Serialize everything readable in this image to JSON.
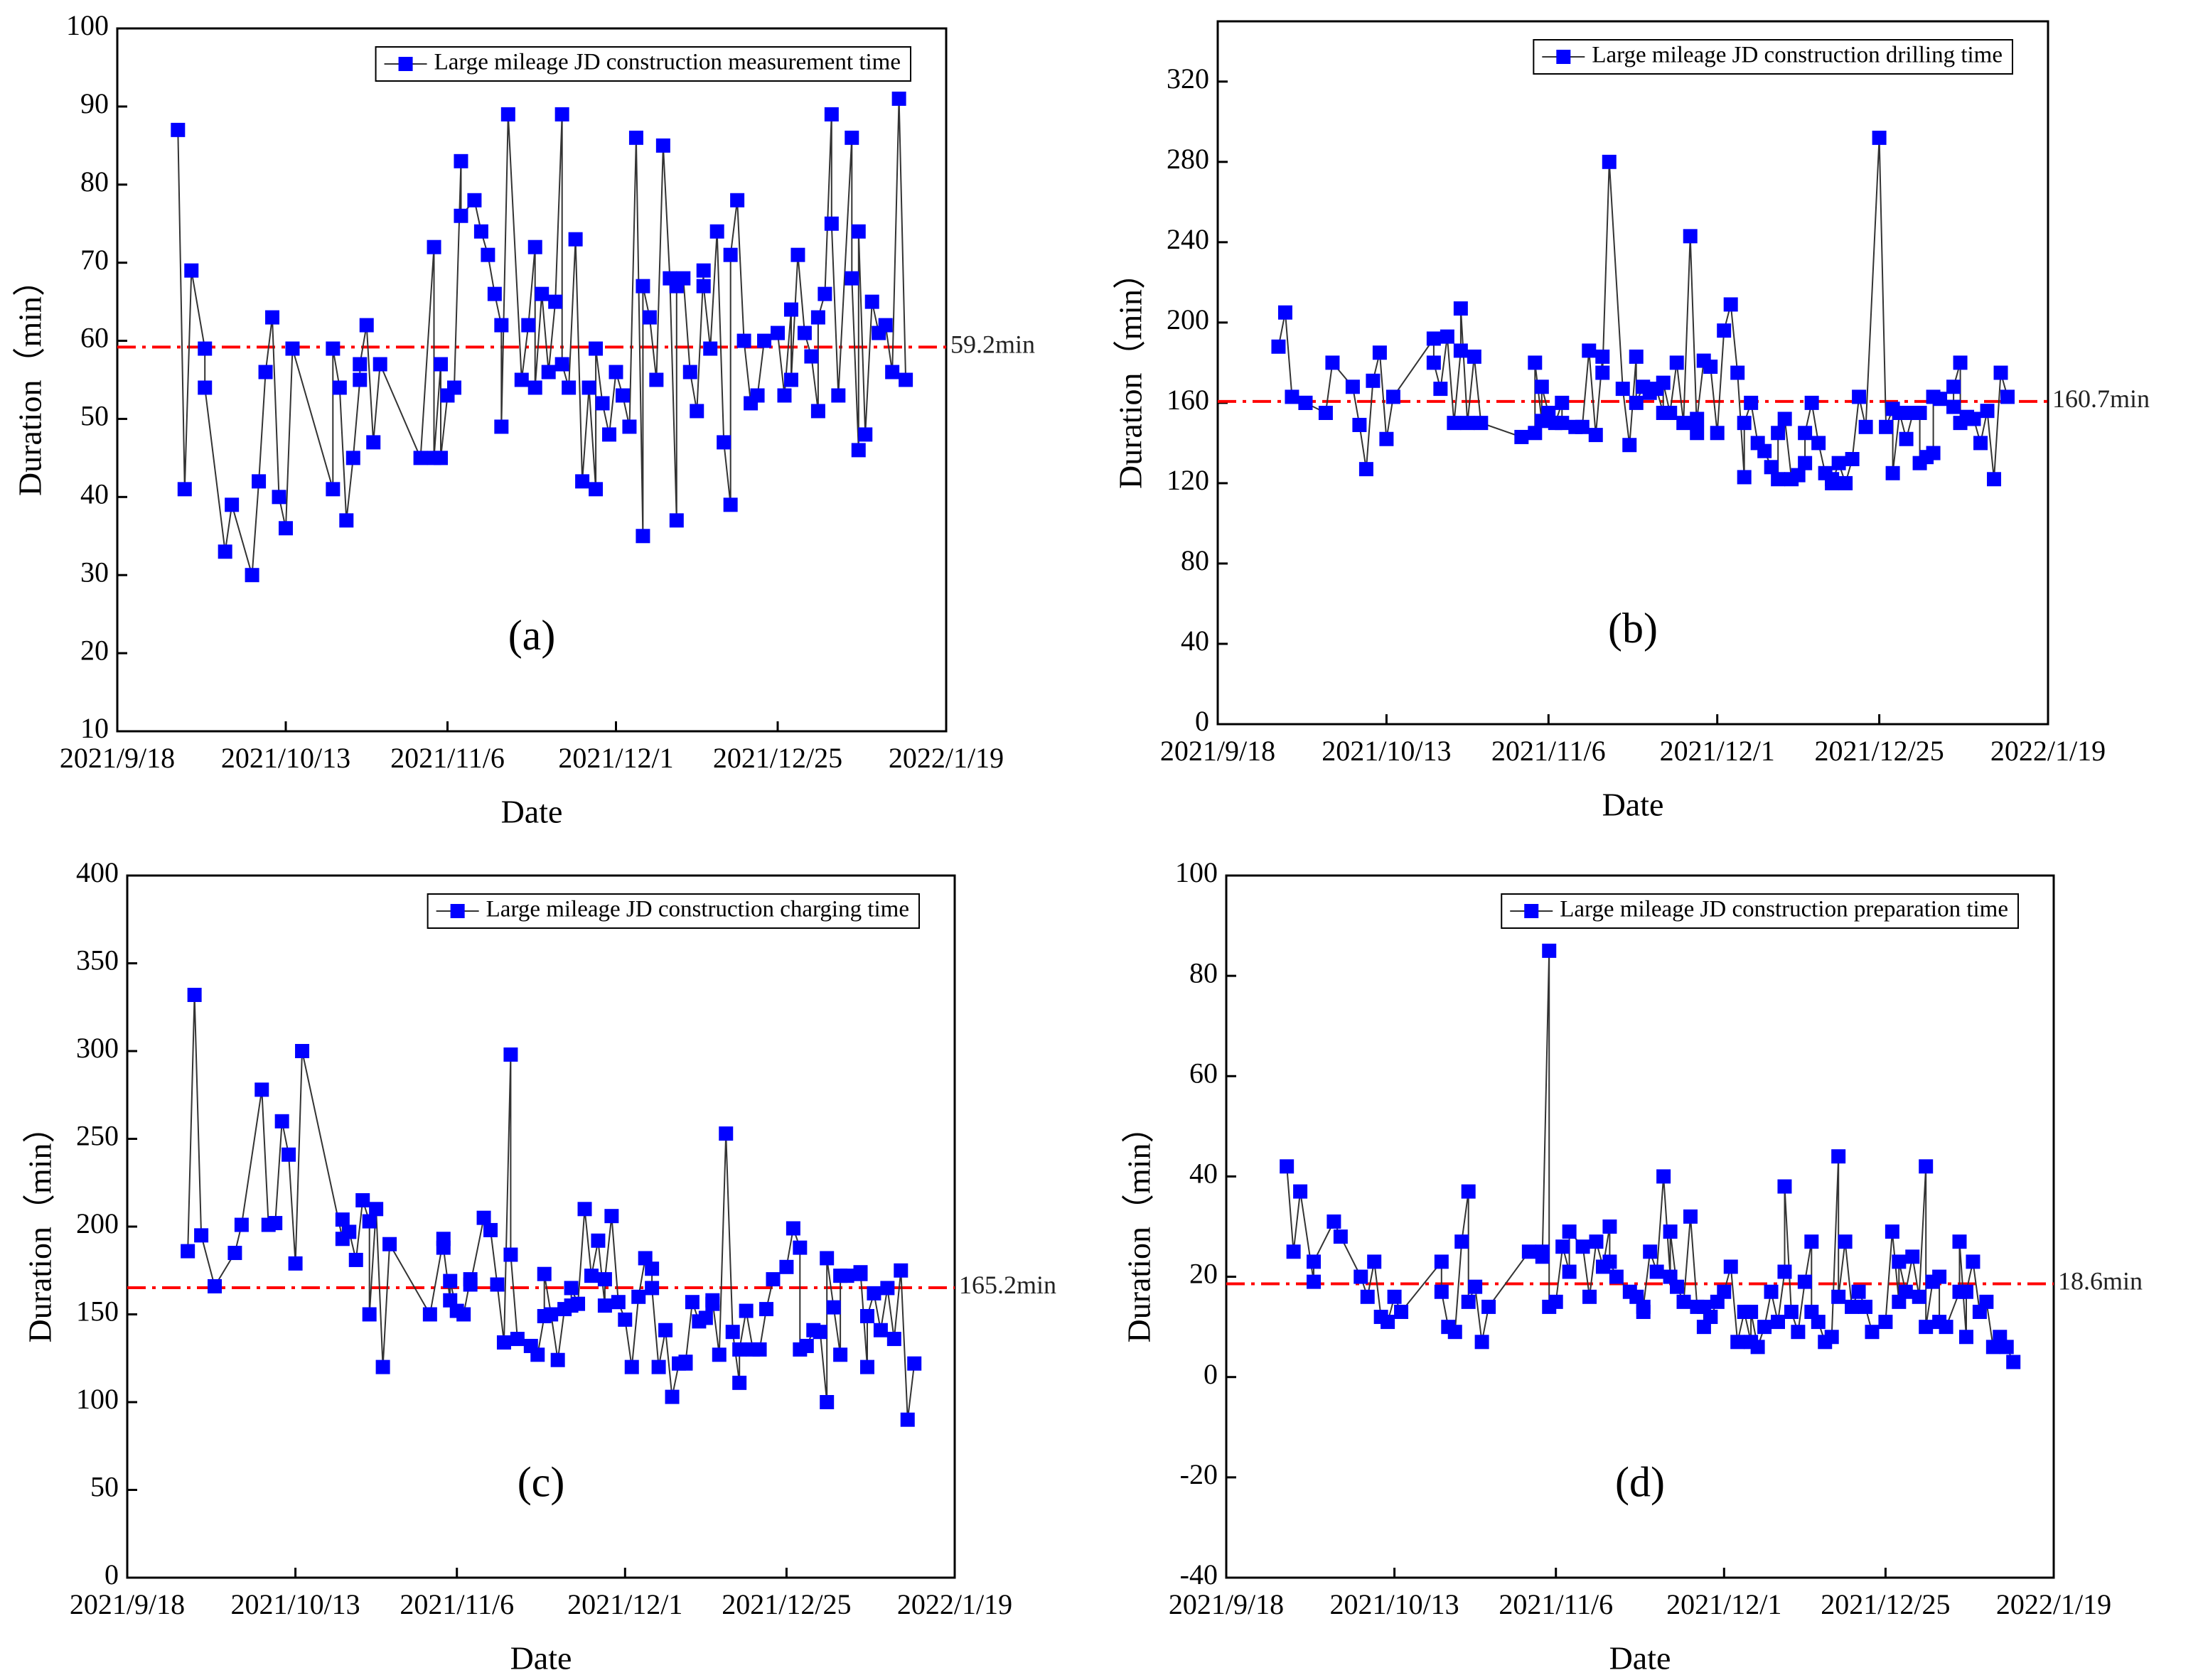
{
  "chart_data": [
    {
      "type": "line",
      "panel_label": "(a)",
      "x_label": "Date",
      "y_label": "Duration（min）",
      "x": [
        "2021/9/27",
        "2021/9/28",
        "2021/9/29",
        "2021/10/1",
        "2021/10/1",
        "2021/10/4",
        "2021/10/5",
        "2021/10/8",
        "2021/10/9",
        "2021/10/10",
        "2021/10/11",
        "2021/10/12",
        "2021/10/13",
        "2021/10/14",
        "2021/10/20",
        "2021/10/20",
        "2021/10/21",
        "2021/10/22",
        "2021/10/23",
        "2021/10/24",
        "2021/10/24",
        "2021/10/25",
        "2021/10/26",
        "2021/10/27",
        "2021/11/2",
        "2021/11/4",
        "2021/11/4",
        "2021/11/5",
        "2021/11/5",
        "2021/11/6",
        "2021/11/7",
        "2021/11/8",
        "2021/11/8",
        "2021/11/10",
        "2021/11/11",
        "2021/11/12",
        "2021/11/13",
        "2021/11/14",
        "2021/11/14",
        "2021/11/15",
        "2021/11/17",
        "2021/11/18",
        "2021/11/19",
        "2021/11/19",
        "2021/11/20",
        "2021/11/21",
        "2021/11/22",
        "2021/11/23",
        "2021/11/23",
        "2021/11/24",
        "2021/11/25",
        "2021/11/26",
        "2021/11/27",
        "2021/11/28",
        "2021/11/28",
        "2021/11/29",
        "2021/11/30",
        "2021/12/1",
        "2021/12/2",
        "2021/12/3",
        "2021/12/4",
        "2021/12/5",
        "2021/12/5",
        "2021/12/6",
        "2021/12/7",
        "2021/12/8",
        "2021/12/9",
        "2021/12/10",
        "2021/12/10",
        "2021/12/11",
        "2021/12/12",
        "2021/12/13",
        "2021/12/14",
        "2021/12/14",
        "2021/12/15",
        "2021/12/16",
        "2021/12/17",
        "2021/12/18",
        "2021/12/18",
        "2021/12/19",
        "2021/12/20",
        "2021/12/21",
        "2021/12/22",
        "2021/12/23",
        "2021/12/25",
        "2021/12/26",
        "2021/12/27",
        "2021/12/27",
        "2021/12/28",
        "2021/12/29",
        "2021/12/30",
        "2021/12/31",
        "2021/12/31",
        "2022/1/1",
        "2022/1/2",
        "2022/1/2",
        "2022/1/3",
        "2022/1/5",
        "2022/1/5",
        "2022/1/6",
        "2022/1/6",
        "2022/1/7",
        "2022/1/8",
        "2022/1/9",
        "2022/1/10",
        "2022/1/11",
        "2022/1/12",
        "2022/1/13"
      ],
      "series": [
        {
          "name": "Large mileage JD construction measurement time",
          "color": "#0000ff",
          "values": [
            87,
            41,
            69,
            59,
            54,
            33,
            39,
            30,
            42,
            56,
            63,
            40,
            36,
            59,
            41,
            59,
            54,
            37,
            45,
            55,
            57,
            62,
            47,
            57,
            45,
            72,
            45,
            57,
            45,
            53,
            54,
            83,
            76,
            78,
            74,
            71,
            66,
            62,
            49,
            89,
            55,
            62,
            72,
            54,
            66,
            56,
            65,
            89,
            57,
            54,
            73,
            42,
            54,
            41,
            59,
            52,
            48,
            56,
            53,
            49,
            86,
            35,
            67,
            63,
            55,
            85,
            68,
            37,
            67,
            68,
            56,
            51,
            69,
            67,
            59,
            74,
            47,
            39,
            71,
            78,
            60,
            52,
            53,
            60,
            61,
            53,
            64,
            55,
            71,
            61,
            58,
            51,
            63,
            66,
            89,
            75,
            53,
            86,
            68,
            46,
            74,
            48,
            65,
            61,
            62,
            56,
            91,
            55
          ]
        }
      ],
      "xlim": [
        "2021/9/18",
        "2022/1/19"
      ],
      "xticks": [
        "2021/9/18",
        "2021/10/13",
        "2021/11/6",
        "2021/12/1",
        "2021/12/25",
        "2022/1/19"
      ],
      "ylim": [
        10,
        100
      ],
      "yticks": [
        10,
        20,
        30,
        40,
        50,
        60,
        70,
        80,
        90,
        100
      ],
      "mean_line": {
        "value": 59.2,
        "label": "59.2min",
        "color": "#ff0000"
      }
    },
    {
      "type": "line",
      "panel_label": "(b)",
      "x_label": "Date",
      "y_label": "Duration（min）",
      "x": [
        "2021/9/27",
        "2021/9/28",
        "2021/9/29",
        "2021/10/1",
        "2021/10/1",
        "2021/10/4",
        "2021/10/5",
        "2021/10/8",
        "2021/10/9",
        "2021/10/10",
        "2021/10/11",
        "2021/10/12",
        "2021/10/13",
        "2021/10/14",
        "2021/10/20",
        "2021/10/20",
        "2021/10/21",
        "2021/10/22",
        "2021/10/23",
        "2021/10/24",
        "2021/10/24",
        "2021/10/25",
        "2021/10/26",
        "2021/10/27",
        "2021/11/2",
        "2021/11/4",
        "2021/11/4",
        "2021/11/5",
        "2021/11/5",
        "2021/11/6",
        "2021/11/7",
        "2021/11/8",
        "2021/11/8",
        "2021/11/10",
        "2021/11/11",
        "2021/11/12",
        "2021/11/13",
        "2021/11/14",
        "2021/11/14",
        "2021/11/15",
        "2021/11/17",
        "2021/11/18",
        "2021/11/19",
        "2021/11/19",
        "2021/11/20",
        "2021/11/21",
        "2021/11/22",
        "2021/11/23",
        "2021/11/23",
        "2021/11/24",
        "2021/11/25",
        "2021/11/26",
        "2021/11/27",
        "2021/11/28",
        "2021/11/28",
        "2021/11/29",
        "2021/11/30",
        "2021/12/1",
        "2021/12/2",
        "2021/12/3",
        "2021/12/4",
        "2021/12/5",
        "2021/12/5",
        "2021/12/6",
        "2021/12/7",
        "2021/12/8",
        "2021/12/9",
        "2021/12/10",
        "2021/12/10",
        "2021/12/11",
        "2021/12/12",
        "2021/12/13",
        "2021/12/14",
        "2021/12/14",
        "2021/12/15",
        "2021/12/16",
        "2021/12/17",
        "2021/12/18",
        "2021/12/18",
        "2021/12/19",
        "2021/12/20",
        "2021/12/21",
        "2021/12/22",
        "2021/12/23",
        "2021/12/25",
        "2021/12/26",
        "2021/12/27",
        "2021/12/27",
        "2021/12/28",
        "2021/12/29",
        "2021/12/30",
        "2021/12/31",
        "2021/12/31",
        "2022/1/1",
        "2022/1/2",
        "2022/1/2",
        "2022/1/3",
        "2022/1/5",
        "2022/1/5",
        "2022/1/6",
        "2022/1/6",
        "2022/1/7",
        "2022/1/8",
        "2022/1/9",
        "2022/1/10",
        "2022/1/11",
        "2022/1/12",
        "2022/1/13"
      ],
      "series": [
        {
          "name": "Large mileage JD construction drilling time",
          "color": "#0000ff",
          "values": [
            188,
            205,
            163,
            160,
            160,
            155,
            180,
            168,
            149,
            127,
            171,
            185,
            142,
            163,
            192,
            180,
            167,
            193,
            150,
            186,
            207,
            150,
            183,
            150,
            143,
            145,
            180,
            151,
            168,
            155,
            150,
            160,
            150,
            148,
            148,
            186,
            144,
            183,
            175,
            280,
            167,
            139,
            183,
            160,
            168,
            165,
            167,
            155,
            170,
            155,
            180,
            150,
            243,
            145,
            152,
            181,
            178,
            145,
            196,
            209,
            175,
            123,
            150,
            160,
            140,
            136,
            128,
            122,
            145,
            152,
            122,
            124,
            130,
            145,
            160,
            140,
            125,
            122,
            120,
            130,
            120,
            132,
            163,
            148,
            292,
            148,
            157,
            125,
            155,
            142,
            155,
            155,
            130,
            133,
            135,
            163,
            162,
            158,
            168,
            180,
            150,
            153,
            152,
            140,
            156,
            122,
            175,
            163
          ]
        }
      ],
      "xlim": [
        "2021/9/18",
        "2022/1/19"
      ],
      "xticks": [
        "2021/9/18",
        "2021/10/13",
        "2021/11/6",
        "2021/12/1",
        "2021/12/25",
        "2022/1/19"
      ],
      "ylim": [
        0,
        350
      ],
      "yticks": [
        0,
        40,
        80,
        120,
        160,
        200,
        240,
        280,
        320
      ],
      "mean_line": {
        "value": 160.7,
        "label": "160.7min",
        "color": "#ff0000"
      }
    },
    {
      "type": "line",
      "panel_label": "(c)",
      "x_label": "Date",
      "y_label": "Duration（min）",
      "x": [
        "2021/9/27",
        "2021/9/28",
        "2021/9/29",
        "2021/10/1",
        "2021/10/1",
        "2021/10/4",
        "2021/10/5",
        "2021/10/8",
        "2021/10/9",
        "2021/10/10",
        "2021/10/11",
        "2021/10/12",
        "2021/10/13",
        "2021/10/14",
        "2021/10/20",
        "2021/10/20",
        "2021/10/21",
        "2021/10/22",
        "2021/10/23",
        "2021/10/24",
        "2021/10/24",
        "2021/10/25",
        "2021/10/26",
        "2021/10/27",
        "2021/11/2",
        "2021/11/4",
        "2021/11/4",
        "2021/11/5",
        "2021/11/5",
        "2021/11/6",
        "2021/11/7",
        "2021/11/8",
        "2021/11/8",
        "2021/11/10",
        "2021/11/11",
        "2021/11/12",
        "2021/11/13",
        "2021/11/14",
        "2021/11/14",
        "2021/11/15",
        "2021/11/17",
        "2021/11/18",
        "2021/11/19",
        "2021/11/19",
        "2021/11/20",
        "2021/11/21",
        "2021/11/22",
        "2021/11/23",
        "2021/11/23",
        "2021/11/24",
        "2021/11/25",
        "2021/11/26",
        "2021/11/27",
        "2021/11/28",
        "2021/11/28",
        "2021/11/29",
        "2021/11/30",
        "2021/12/1",
        "2021/12/2",
        "2021/12/3",
        "2021/12/4",
        "2021/12/5",
        "2021/12/5",
        "2021/12/6",
        "2021/12/7",
        "2021/12/8",
        "2021/12/9",
        "2021/12/10",
        "2021/12/10",
        "2021/12/11",
        "2021/12/12",
        "2021/12/13",
        "2021/12/14",
        "2021/12/14",
        "2021/12/15",
        "2021/12/16",
        "2021/12/17",
        "2021/12/18",
        "2021/12/18",
        "2021/12/19",
        "2021/12/20",
        "2021/12/21",
        "2021/12/22",
        "2021/12/23",
        "2021/12/25",
        "2021/12/26",
        "2021/12/27",
        "2021/12/27",
        "2021/12/28",
        "2021/12/29",
        "2021/12/30",
        "2021/12/31",
        "2021/12/31",
        "2022/1/1",
        "2022/1/2",
        "2022/1/2",
        "2022/1/3",
        "2022/1/5",
        "2022/1/5",
        "2022/1/6",
        "2022/1/6",
        "2022/1/7",
        "2022/1/8",
        "2022/1/9",
        "2022/1/10",
        "2022/1/11",
        "2022/1/12",
        "2022/1/13"
      ],
      "series": [
        {
          "name": "Large mileage JD construction charging time",
          "color": "#0000ff",
          "values": [
            186,
            332,
            195,
            166,
            166,
            185,
            201,
            278,
            201,
            202,
            260,
            241,
            179,
            300,
            193,
            204,
            197,
            181,
            215,
            203,
            150,
            210,
            120,
            190,
            150,
            193,
            188,
            158,
            169,
            152,
            150,
            170,
            167,
            205,
            198,
            167,
            134,
            298,
            184,
            136,
            132,
            127,
            149,
            173,
            150,
            124,
            153,
            155,
            165,
            156,
            210,
            172,
            192,
            155,
            170,
            206,
            157,
            147,
            120,
            160,
            182,
            176,
            165,
            120,
            141,
            103,
            122,
            122,
            123,
            157,
            146,
            148,
            156,
            158,
            127,
            253,
            140,
            111,
            130,
            152,
            130,
            130,
            153,
            170,
            177,
            199,
            188,
            130,
            132,
            141,
            140,
            100,
            182,
            154,
            127,
            172,
            172,
            173,
            174,
            120,
            149,
            162,
            141,
            165,
            136,
            175,
            90,
            122
          ]
        }
      ],
      "xlim": [
        "2021/9/18",
        "2022/1/19"
      ],
      "xticks": [
        "2021/9/18",
        "2021/10/13",
        "2021/11/6",
        "2021/12/1",
        "2021/12/25",
        "2022/1/19"
      ],
      "ylim": [
        0,
        400
      ],
      "yticks": [
        0,
        50,
        100,
        150,
        200,
        250,
        300,
        350,
        400
      ],
      "mean_line": {
        "value": 165.2,
        "label": "165.2min",
        "color": "#ff0000"
      }
    },
    {
      "type": "line",
      "panel_label": "(d)",
      "x_label": "Date",
      "y_label": "Duration（min）",
      "x": [
        "2021/9/27",
        "2021/9/28",
        "2021/9/29",
        "2021/10/1",
        "2021/10/1",
        "2021/10/4",
        "2021/10/5",
        "2021/10/8",
        "2021/10/9",
        "2021/10/10",
        "2021/10/11",
        "2021/10/12",
        "2021/10/13",
        "2021/10/14",
        "2021/10/20",
        "2021/10/20",
        "2021/10/21",
        "2021/10/22",
        "2021/10/23",
        "2021/10/24",
        "2021/10/24",
        "2021/10/25",
        "2021/10/26",
        "2021/10/27",
        "2021/11/2",
        "2021/11/4",
        "2021/11/4",
        "2021/11/5",
        "2021/11/5",
        "2021/11/6",
        "2021/11/7",
        "2021/11/8",
        "2021/11/8",
        "2021/11/10",
        "2021/11/11",
        "2021/11/12",
        "2021/11/13",
        "2021/11/14",
        "2021/11/14",
        "2021/11/15",
        "2021/11/17",
        "2021/11/18",
        "2021/11/19",
        "2021/11/19",
        "2021/11/20",
        "2021/11/21",
        "2021/11/22",
        "2021/11/23",
        "2021/11/23",
        "2021/11/24",
        "2021/11/25",
        "2021/11/26",
        "2021/11/27",
        "2021/11/28",
        "2021/11/28",
        "2021/11/29",
        "2021/11/30",
        "2021/12/1",
        "2021/12/2",
        "2021/12/3",
        "2021/12/4",
        "2021/12/5",
        "2021/12/5",
        "2021/12/6",
        "2021/12/7",
        "2021/12/8",
        "2021/12/9",
        "2021/12/10",
        "2021/12/10",
        "2021/12/11",
        "2021/12/12",
        "2021/12/13",
        "2021/12/14",
        "2021/12/14",
        "2021/12/15",
        "2021/12/16",
        "2021/12/17",
        "2021/12/18",
        "2021/12/18",
        "2021/12/19",
        "2021/12/20",
        "2021/12/21",
        "2021/12/22",
        "2021/12/23",
        "2021/12/25",
        "2021/12/26",
        "2021/12/27",
        "2021/12/27",
        "2021/12/28",
        "2021/12/29",
        "2021/12/30",
        "2021/12/31",
        "2021/12/31",
        "2022/1/1",
        "2022/1/2",
        "2022/1/2",
        "2022/1/3",
        "2022/1/5",
        "2022/1/5",
        "2022/1/6",
        "2022/1/6",
        "2022/1/7",
        "2022/1/8",
        "2022/1/9",
        "2022/1/10",
        "2022/1/11",
        "2022/1/12",
        "2022/1/13"
      ],
      "series": [
        {
          "name": "Large mileage JD construction preparation time",
          "color": "#0000ff",
          "values": [
            42,
            25,
            37,
            19,
            23,
            31,
            28,
            20,
            16,
            23,
            12,
            11,
            16,
            13,
            23,
            17,
            10,
            9,
            27,
            37,
            15,
            18,
            7,
            14,
            25,
            24,
            25,
            85,
            14,
            15,
            26,
            21,
            29,
            26,
            16,
            27,
            22,
            30,
            23,
            20,
            17,
            16,
            13,
            14,
            25,
            21,
            40,
            20,
            29,
            18,
            15,
            32,
            14,
            14,
            10,
            12,
            15,
            17,
            22,
            7,
            13,
            7,
            13,
            6,
            10,
            17,
            11,
            21,
            38,
            13,
            9,
            19,
            27,
            13,
            11,
            7,
            8,
            44,
            16,
            27,
            14,
            17,
            14,
            9,
            11,
            29,
            15,
            23,
            17,
            24,
            16,
            42,
            10,
            19,
            20,
            11,
            10,
            17,
            27,
            8,
            17,
            23,
            13,
            15,
            6,
            8,
            6,
            3
          ]
        }
      ],
      "xlim": [
        "2021/9/18",
        "2022/1/19"
      ],
      "xticks": [
        "2021/9/18",
        "2021/10/13",
        "2021/11/6",
        "2021/12/1",
        "2021/12/25",
        "2022/1/19"
      ],
      "ylim": [
        -40,
        100
      ],
      "yticks": [
        -40,
        -20,
        0,
        20,
        40,
        60,
        80,
        100
      ],
      "mean_line": {
        "value": 18.6,
        "label": "18.6min",
        "color": "#ff0000"
      }
    }
  ]
}
